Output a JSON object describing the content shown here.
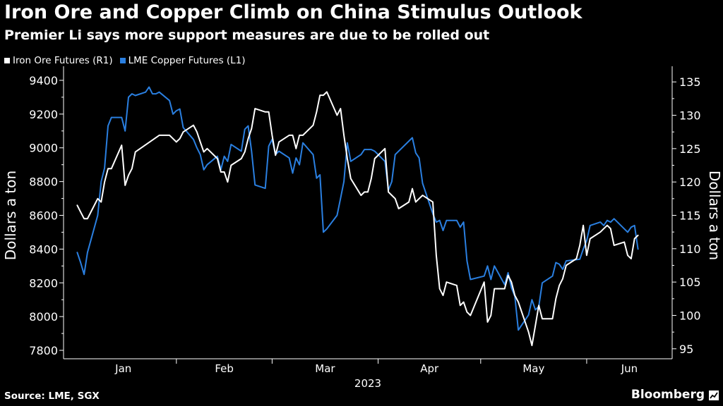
{
  "chart_data": {
    "type": "line",
    "title": "Iron Ore and Copper Climb on China Stimulus Outlook",
    "subtitle": "Premier Li says more support measures are due to be rolled out",
    "xlabel": "2023",
    "ylabel_left": "Dollars a ton",
    "ylabel_right": "Dollars a ton",
    "x_ticks": [
      "Jan",
      "Feb",
      "Mar",
      "Apr",
      "May",
      "Jun"
    ],
    "y_left": {
      "min": 7750,
      "max": 9450,
      "ticks": [
        7800,
        8000,
        8200,
        8400,
        8600,
        8800,
        9000,
        9200,
        9400
      ]
    },
    "y_right": {
      "min": 93.5,
      "max": 136.5,
      "ticks": [
        95,
        100,
        105,
        110,
        115,
        120,
        125,
        130,
        135
      ]
    },
    "legend_position": "top-left",
    "series": [
      {
        "name": "Iron Ore Futures (R1)",
        "axis": "right",
        "color": "#ffffff",
        "x": [
          "2023-01-03",
          "2023-01-04",
          "2023-01-05",
          "2023-01-06",
          "2023-01-09",
          "2023-01-10",
          "2023-01-11",
          "2023-01-12",
          "2023-01-13",
          "2023-01-16",
          "2023-01-17",
          "2023-01-18",
          "2023-01-19",
          "2023-01-20",
          "2023-01-27",
          "2023-01-30",
          "2023-01-31",
          "2023-02-01",
          "2023-02-02",
          "2023-02-03",
          "2023-02-06",
          "2023-02-07",
          "2023-02-08",
          "2023-02-09",
          "2023-02-10",
          "2023-02-13",
          "2023-02-14",
          "2023-02-15",
          "2023-02-16",
          "2023-02-17",
          "2023-02-20",
          "2023-02-21",
          "2023-02-22",
          "2023-02-23",
          "2023-02-24",
          "2023-02-27",
          "2023-02-28",
          "2023-03-01",
          "2023-03-02",
          "2023-03-03",
          "2023-03-06",
          "2023-03-07",
          "2023-03-08",
          "2023-03-09",
          "2023-03-10",
          "2023-03-13",
          "2023-03-14",
          "2023-03-15",
          "2023-03-16",
          "2023-03-17",
          "2023-03-20",
          "2023-03-21",
          "2023-03-22",
          "2023-03-23",
          "2023-03-24",
          "2023-03-27",
          "2023-03-28",
          "2023-03-29",
          "2023-03-30",
          "2023-03-31",
          "2023-04-03",
          "2023-04-04",
          "2023-04-05",
          "2023-04-06",
          "2023-04-07",
          "2023-04-10",
          "2023-04-11",
          "2023-04-12",
          "2023-04-13",
          "2023-04-14",
          "2023-04-17",
          "2023-04-18",
          "2023-04-19",
          "2023-04-20",
          "2023-04-21",
          "2023-04-24",
          "2023-04-25",
          "2023-04-26",
          "2023-04-27",
          "2023-04-28",
          "2023-05-02",
          "2023-05-03",
          "2023-05-04",
          "2023-05-05",
          "2023-05-08",
          "2023-05-09",
          "2023-05-10",
          "2023-05-11",
          "2023-05-12",
          "2023-05-15",
          "2023-05-16",
          "2023-05-17",
          "2023-05-18",
          "2023-05-19",
          "2023-05-22",
          "2023-05-23",
          "2023-05-24",
          "2023-05-25",
          "2023-05-26",
          "2023-05-29",
          "2023-05-30",
          "2023-05-31",
          "2023-06-01",
          "2023-06-02",
          "2023-06-05",
          "2023-06-06",
          "2023-06-07",
          "2023-06-08",
          "2023-06-09",
          "2023-06-12",
          "2023-06-13",
          "2023-06-14",
          "2023-06-15",
          "2023-06-16"
        ],
        "values": [
          116.5,
          115.5,
          114.5,
          114.5,
          117.5,
          117.0,
          120.0,
          122.0,
          122.0,
          125.5,
          119.5,
          121.0,
          122.0,
          124.5,
          127.0,
          127.0,
          126.5,
          126.0,
          126.5,
          127.5,
          128.5,
          127.5,
          126.0,
          124.5,
          125.0,
          123.5,
          121.5,
          121.5,
          120.0,
          122.5,
          123.5,
          124.5,
          126.5,
          128.0,
          131.0,
          130.5,
          130.5,
          127.0,
          124.0,
          126.0,
          127.0,
          127.0,
          125.0,
          127.0,
          127.0,
          128.5,
          130.5,
          133.0,
          133.0,
          133.5,
          130.0,
          131.0,
          127.0,
          123.5,
          120.5,
          118.0,
          118.5,
          118.5,
          120.5,
          123.5,
          125.0,
          118.5,
          118.0,
          117.5,
          116.0,
          117.0,
          119.0,
          117.0,
          117.5,
          118.0,
          117.0,
          109.0,
          104.0,
          103.0,
          105.0,
          104.5,
          101.5,
          102.0,
          100.5,
          100.0,
          105.0,
          99.0,
          100.0,
          104.0,
          104.0,
          106.0,
          105.0,
          103.0,
          102.0,
          97.5,
          95.5,
          98.5,
          101.5,
          99.5,
          99.5,
          102.5,
          104.5,
          105.5,
          107.5,
          108.5,
          110.5,
          113.5,
          109.0,
          111.5,
          112.5,
          113.0,
          113.5,
          113.0,
          110.5,
          111.0,
          109.0,
          108.5,
          111.5,
          112.0
        ]
      },
      {
        "name": "LME Copper Futures (L1)",
        "axis": "left",
        "color": "#2a7fe0",
        "x": [
          "2023-01-03",
          "2023-01-04",
          "2023-01-05",
          "2023-01-06",
          "2023-01-09",
          "2023-01-10",
          "2023-01-11",
          "2023-01-12",
          "2023-01-13",
          "2023-01-16",
          "2023-01-17",
          "2023-01-18",
          "2023-01-19",
          "2023-01-20",
          "2023-01-23",
          "2023-01-24",
          "2023-01-25",
          "2023-01-26",
          "2023-01-27",
          "2023-01-30",
          "2023-01-31",
          "2023-02-01",
          "2023-02-02",
          "2023-02-03",
          "2023-02-06",
          "2023-02-07",
          "2023-02-08",
          "2023-02-09",
          "2023-02-10",
          "2023-02-13",
          "2023-02-14",
          "2023-02-15",
          "2023-02-16",
          "2023-02-17",
          "2023-02-20",
          "2023-02-21",
          "2023-02-22",
          "2023-02-23",
          "2023-02-24",
          "2023-02-27",
          "2023-02-28",
          "2023-03-01",
          "2023-03-02",
          "2023-03-03",
          "2023-03-06",
          "2023-03-07",
          "2023-03-08",
          "2023-03-09",
          "2023-03-10",
          "2023-03-13",
          "2023-03-14",
          "2023-03-15",
          "2023-03-16",
          "2023-03-17",
          "2023-03-20",
          "2023-03-21",
          "2023-03-22",
          "2023-03-23",
          "2023-03-24",
          "2023-03-27",
          "2023-03-28",
          "2023-03-29",
          "2023-03-30",
          "2023-03-31",
          "2023-04-03",
          "2023-04-04",
          "2023-04-05",
          "2023-04-06",
          "2023-04-11",
          "2023-04-12",
          "2023-04-13",
          "2023-04-14",
          "2023-04-17",
          "2023-04-18",
          "2023-04-19",
          "2023-04-20",
          "2023-04-21",
          "2023-04-24",
          "2023-04-25",
          "2023-04-26",
          "2023-04-27",
          "2023-04-28",
          "2023-05-02",
          "2023-05-03",
          "2023-05-04",
          "2023-05-05",
          "2023-05-08",
          "2023-05-09",
          "2023-05-10",
          "2023-05-11",
          "2023-05-12",
          "2023-05-15",
          "2023-05-16",
          "2023-05-17",
          "2023-05-18",
          "2023-05-19",
          "2023-05-22",
          "2023-05-23",
          "2023-05-24",
          "2023-05-25",
          "2023-05-26",
          "2023-05-30",
          "2023-05-31",
          "2023-06-01",
          "2023-06-02",
          "2023-06-05",
          "2023-06-06",
          "2023-06-07",
          "2023-06-08",
          "2023-06-09",
          "2023-06-12",
          "2023-06-13",
          "2023-06-14",
          "2023-06-15",
          "2023-06-16"
        ],
        "values": [
          8380,
          8320,
          8250,
          8380,
          8600,
          8800,
          8880,
          9130,
          9180,
          9180,
          9100,
          9300,
          9320,
          9310,
          9330,
          9360,
          9320,
          9320,
          9330,
          9280,
          9200,
          9220,
          9230,
          9120,
          9050,
          9000,
          8960,
          8870,
          8900,
          8950,
          8870,
          8950,
          8920,
          9020,
          8980,
          9110,
          9130,
          8980,
          8780,
          8760,
          9010,
          9050,
          8960,
          8980,
          8940,
          8850,
          8940,
          8900,
          9030,
          8960,
          8820,
          8840,
          8500,
          8520,
          8600,
          8700,
          8800,
          9030,
          8920,
          8960,
          8990,
          8990,
          8990,
          8980,
          8920,
          8750,
          8800,
          8960,
          9060,
          8970,
          8940,
          8790,
          8610,
          8560,
          8570,
          8510,
          8570,
          8570,
          8530,
          8560,
          8330,
          8220,
          8240,
          8300,
          8220,
          8300,
          8190,
          8260,
          8170,
          8120,
          7920,
          8010,
          8100,
          8040,
          8060,
          8200,
          8240,
          8320,
          8310,
          8280,
          8330,
          8340,
          8400,
          8450,
          8540,
          8560,
          8540,
          8570,
          8560,
          8580,
          8520,
          8500,
          8530,
          8540,
          8400
        ]
      }
    ]
  },
  "footer": {
    "source": "Source: LME, SGX",
    "brand": "Bloomberg"
  }
}
